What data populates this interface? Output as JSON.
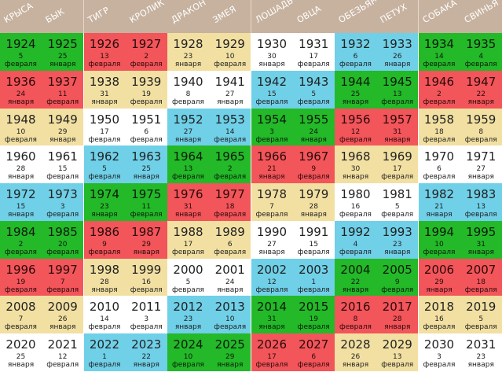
{
  "headers": [
    "КРЫСА",
    "БЫК",
    "ТИГР",
    "КРОЛИК",
    "ДРАКОН",
    "ЗМЕЯ",
    "ЛОШАДЬ",
    "ОВЦА",
    "ОБЕЗЬЯНА",
    "ПЕТУХ",
    "СОБАКА",
    "СВИНЬЯ"
  ],
  "colors": {
    "white": "#ffffff",
    "yellow": "#f2e0a2",
    "blue": "#6fd0e8",
    "green": "#23b928",
    "red": "#f2555a"
  },
  "rows": [
    [
      [
        "1924",
        "5",
        "февраля",
        "green"
      ],
      [
        "1925",
        "25",
        "января",
        "green"
      ],
      [
        "1926",
        "13",
        "февраля",
        "red"
      ],
      [
        "1927",
        "2",
        "февраля",
        "red"
      ],
      [
        "1928",
        "23",
        "января",
        "yellow"
      ],
      [
        "1929",
        "10",
        "февраля",
        "yellow"
      ],
      [
        "1930",
        "30",
        "января",
        "white"
      ],
      [
        "1931",
        "17",
        "февраля",
        "white"
      ],
      [
        "1932",
        "6",
        "февраля",
        "blue"
      ],
      [
        "1933",
        "26",
        "января",
        "blue"
      ],
      [
        "1934",
        "14",
        "февраля",
        "green"
      ],
      [
        "1935",
        "4",
        "февраля",
        "green"
      ]
    ],
    [
      [
        "1936",
        "24",
        "января",
        "red"
      ],
      [
        "1937",
        "11",
        "февраля",
        "red"
      ],
      [
        "1938",
        "31",
        "января",
        "yellow"
      ],
      [
        "1939",
        "19",
        "февраля",
        "yellow"
      ],
      [
        "1940",
        "8",
        "февраля",
        "white"
      ],
      [
        "1941",
        "27",
        "января",
        "white"
      ],
      [
        "1942",
        "15",
        "февраля",
        "blue"
      ],
      [
        "1943",
        "5",
        "февраля",
        "blue"
      ],
      [
        "1944",
        "25",
        "января",
        "green"
      ],
      [
        "1945",
        "13",
        "февраля",
        "green"
      ],
      [
        "1946",
        "2",
        "февраля",
        "red"
      ],
      [
        "1947",
        "22",
        "января",
        "red"
      ]
    ],
    [
      [
        "1948",
        "10",
        "февраля",
        "yellow"
      ],
      [
        "1949",
        "29",
        "января",
        "yellow"
      ],
      [
        "1950",
        "17",
        "февраля",
        "white"
      ],
      [
        "1951",
        "6",
        "февраля",
        "white"
      ],
      [
        "1952",
        "27",
        "января",
        "blue"
      ],
      [
        "1953",
        "14",
        "февраля",
        "blue"
      ],
      [
        "1954",
        "3",
        "февраля",
        "green"
      ],
      [
        "1955",
        "24",
        "января",
        "green"
      ],
      [
        "1956",
        "12",
        "февраля",
        "red"
      ],
      [
        "1957",
        "31",
        "января",
        "red"
      ],
      [
        "1958",
        "18",
        "февраля",
        "yellow"
      ],
      [
        "1959",
        "8",
        "февраля",
        "yellow"
      ]
    ],
    [
      [
        "1960",
        "28",
        "января",
        "white"
      ],
      [
        "1961",
        "15",
        "февраля",
        "white"
      ],
      [
        "1962",
        "5",
        "февраля",
        "blue"
      ],
      [
        "1963",
        "25",
        "января",
        "blue"
      ],
      [
        "1964",
        "13",
        "февраля",
        "green"
      ],
      [
        "1965",
        "2",
        "февраля",
        "green"
      ],
      [
        "1966",
        "21",
        "января",
        "red"
      ],
      [
        "1967",
        "9",
        "февраля",
        "red"
      ],
      [
        "1968",
        "30",
        "января",
        "yellow"
      ],
      [
        "1969",
        "17",
        "февраля",
        "yellow"
      ],
      [
        "1970",
        "6",
        "февраля",
        "white"
      ],
      [
        "1971",
        "27",
        "января",
        "white"
      ]
    ],
    [
      [
        "1972",
        "15",
        "января",
        "blue"
      ],
      [
        "1973",
        "3",
        "февраля",
        "blue"
      ],
      [
        "1974",
        "23",
        "января",
        "green"
      ],
      [
        "1975",
        "11",
        "февраля",
        "green"
      ],
      [
        "1976",
        "31",
        "января",
        "red"
      ],
      [
        "1977",
        "18",
        "февраля",
        "red"
      ],
      [
        "1978",
        "7",
        "февраля",
        "yellow"
      ],
      [
        "1979",
        "28",
        "января",
        "yellow"
      ],
      [
        "1980",
        "16",
        "февраля",
        "white"
      ],
      [
        "1981",
        "5",
        "февраля",
        "white"
      ],
      [
        "1982",
        "21",
        "января",
        "blue"
      ],
      [
        "1983",
        "13",
        "февраля",
        "blue"
      ]
    ],
    [
      [
        "1984",
        "2",
        "февраля",
        "green"
      ],
      [
        "1985",
        "20",
        "февраля",
        "green"
      ],
      [
        "1986",
        "9",
        "февраля",
        "red"
      ],
      [
        "1987",
        "29",
        "января",
        "red"
      ],
      [
        "1988",
        "17",
        "февраля",
        "yellow"
      ],
      [
        "1989",
        "6",
        "февраля",
        "yellow"
      ],
      [
        "1990",
        "27",
        "января",
        "white"
      ],
      [
        "1991",
        "15",
        "февраля",
        "white"
      ],
      [
        "1992",
        "4",
        "февраля",
        "blue"
      ],
      [
        "1993",
        "23",
        "января",
        "blue"
      ],
      [
        "1994",
        "10",
        "февраля",
        "green"
      ],
      [
        "1995",
        "31",
        "января",
        "green"
      ]
    ],
    [
      [
        "1996",
        "19",
        "февраля",
        "red"
      ],
      [
        "1997",
        "7",
        "февраля",
        "red"
      ],
      [
        "1998",
        "28",
        "января",
        "yellow"
      ],
      [
        "1999",
        "16",
        "февраля",
        "yellow"
      ],
      [
        "2000",
        "5",
        "февраля",
        "white"
      ],
      [
        "2001",
        "24",
        "января",
        "white"
      ],
      [
        "2002",
        "12",
        "февраля",
        "blue"
      ],
      [
        "2003",
        "1",
        "февраля",
        "blue"
      ],
      [
        "2004",
        "22",
        "января",
        "green"
      ],
      [
        "2005",
        "9",
        "февраля",
        "green"
      ],
      [
        "2006",
        "29",
        "января",
        "red"
      ],
      [
        "2007",
        "18",
        "февраля",
        "red"
      ]
    ],
    [
      [
        "2008",
        "7",
        "февраля",
        "yellow"
      ],
      [
        "2009",
        "26",
        "января",
        "yellow"
      ],
      [
        "2010",
        "14",
        "февраля",
        "white"
      ],
      [
        "2011",
        "3",
        "февраля",
        "white"
      ],
      [
        "2012",
        "23",
        "января",
        "blue"
      ],
      [
        "2013",
        "10",
        "февраля",
        "blue"
      ],
      [
        "2014",
        "31",
        "января",
        "green"
      ],
      [
        "2015",
        "19",
        "февраля",
        "green"
      ],
      [
        "2016",
        "8",
        "февраля",
        "red"
      ],
      [
        "2017",
        "28",
        "января",
        "red"
      ],
      [
        "2018",
        "16",
        "февраля",
        "yellow"
      ],
      [
        "2019",
        "5",
        "февраля",
        "yellow"
      ]
    ],
    [
      [
        "2020",
        "25",
        "января",
        "white"
      ],
      [
        "2021",
        "12",
        "февраля",
        "white"
      ],
      [
        "2022",
        "1",
        "февраля",
        "blue"
      ],
      [
        "2023",
        "22",
        "января",
        "blue"
      ],
      [
        "2024",
        "10",
        "февраля",
        "green"
      ],
      [
        "2025",
        "29",
        "января",
        "green"
      ],
      [
        "2026",
        "17",
        "февраля",
        "red"
      ],
      [
        "2027",
        "6",
        "февраля",
        "red"
      ],
      [
        "2028",
        "26",
        "января",
        "yellow"
      ],
      [
        "2029",
        "13",
        "февраля",
        "yellow"
      ],
      [
        "2030",
        "3",
        "февраля",
        "white"
      ],
      [
        "2031",
        "23",
        "января",
        "white"
      ]
    ]
  ]
}
